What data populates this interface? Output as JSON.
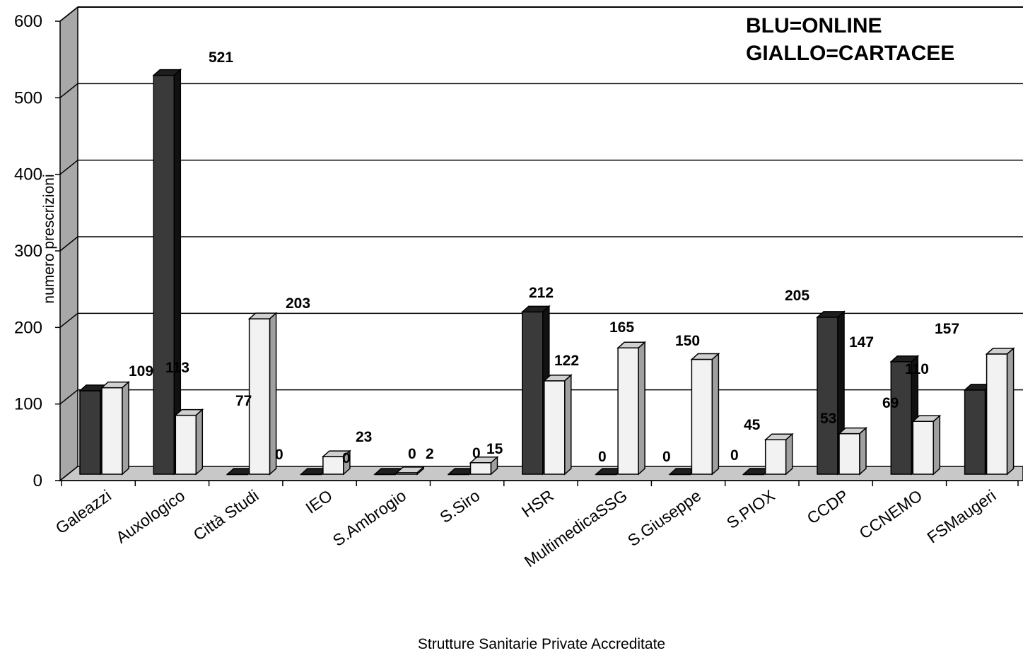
{
  "chart_data": {
    "type": "bar",
    "xlabel": "Strutture Sanitarie Private Accreditate",
    "ylabel": "numero prescrizioni",
    "ylim": [
      0,
      600
    ],
    "yticks": [
      0,
      100,
      200,
      300,
      400,
      500,
      600
    ],
    "legend_lines": [
      "BLU=ONLINE",
      "GIALLO=CARTACEE"
    ],
    "legend_position": "top-right",
    "grid": true,
    "categories": [
      "Galeazzi",
      "Auxologico",
      "Città Studi",
      "IEO",
      "S.Ambrogio",
      "S.Siro",
      "HSR",
      "MultimedicaSSG",
      "S.Giuseppe",
      "S.PIOX",
      "CCDP",
      "CCNEMO",
      "FSMaugeri"
    ],
    "series": [
      {
        "values": [
          109,
          521,
          0,
          0,
          0,
          0,
          212,
          0,
          0,
          0,
          205,
          147,
          110
        ],
        "color": "#3a3a3a"
      },
      {
        "values": [
          113,
          77,
          203,
          23,
          2,
          15,
          122,
          165,
          150,
          45,
          53,
          69,
          157
        ],
        "color": "#f2f2f2"
      }
    ]
  }
}
